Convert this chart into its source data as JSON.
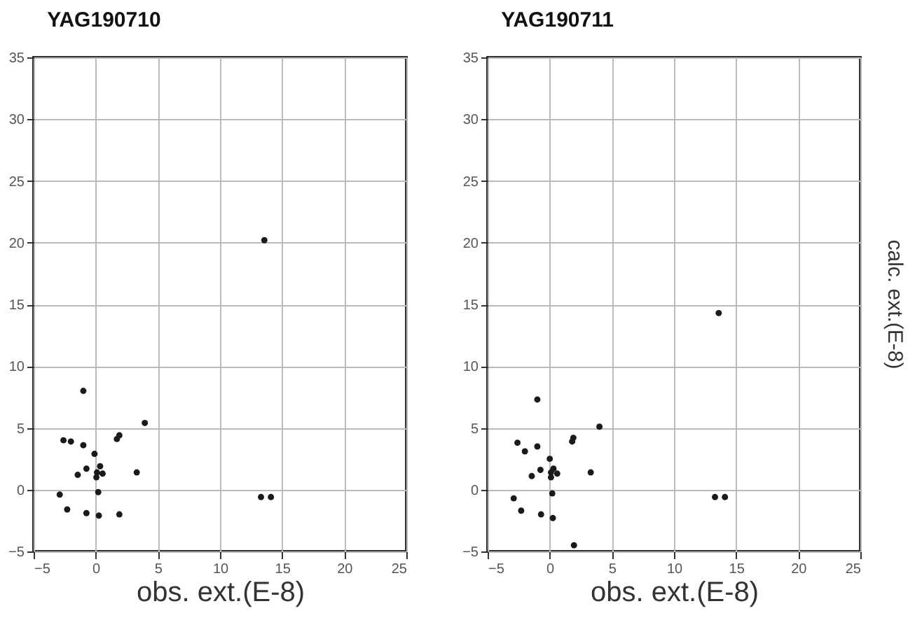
{
  "chart_data": [
    {
      "type": "scatter",
      "title": "YAG190710",
      "xlabel": "obs. ext.(E-8)",
      "xlim": [
        -5,
        25
      ],
      "ylim": [
        -5,
        35
      ],
      "xticks": [
        -5,
        0,
        5,
        10,
        15,
        20,
        25
      ],
      "yticks": [
        -5,
        0,
        5,
        10,
        15,
        20,
        25,
        30,
        35
      ],
      "grid": true,
      "marker": "circle",
      "series": [
        {
          "color": "#1a1a1a",
          "x": [
            13.57,
            -1.0,
            3.95,
            1.9,
            1.7,
            -2.6,
            -2.0,
            -1.0,
            -0.1,
            0.35,
            -0.75,
            -1.45,
            0.1,
            0.55,
            0.05,
            3.3,
            0.2,
            -2.9,
            13.3,
            14.1,
            -2.3,
            -0.75,
            0.25,
            1.9
          ],
          "values": [
            20.2,
            8.0,
            5.4,
            4.4,
            4.1,
            4.0,
            3.9,
            3.6,
            2.9,
            1.9,
            1.7,
            1.2,
            1.4,
            1.3,
            1.0,
            1.4,
            -0.2,
            -0.4,
            -0.6,
            -0.6,
            -1.6,
            -1.9,
            -2.1,
            -2.0
          ]
        }
      ]
    },
    {
      "type": "scatter",
      "title": "YAG190711",
      "xlabel": "obs. ext.(E-8)",
      "ylabel": "calc. ext.(E-8)",
      "xlim": [
        -5,
        25
      ],
      "ylim": [
        -5,
        35
      ],
      "xticks": [
        -5,
        0,
        5,
        10,
        15,
        20,
        25
      ],
      "yticks": [
        -5,
        0,
        5,
        10,
        15,
        20,
        25,
        30,
        35
      ],
      "grid": true,
      "marker": "circle",
      "series": [
        {
          "color": "#1a1a1a",
          "x": [
            13.6,
            -1.0,
            4.0,
            1.9,
            1.8,
            -2.6,
            -2.0,
            -1.0,
            0,
            0.3,
            -0.75,
            -1.45,
            0.1,
            0.6,
            0.1,
            3.3,
            0.2,
            -2.9,
            13.3,
            14.1,
            -2.3,
            -0.7,
            0.25,
            1.95
          ],
          "values": [
            14.3,
            7.3,
            5.1,
            4.2,
            3.9,
            3.8,
            3.1,
            3.5,
            2.5,
            1.7,
            1.6,
            1.1,
            1.4,
            1.3,
            1.0,
            1.4,
            -0.3,
            -0.7,
            -0.6,
            -0.6,
            -1.7,
            -2.0,
            -2.3,
            -4.5
          ]
        }
      ]
    }
  ]
}
